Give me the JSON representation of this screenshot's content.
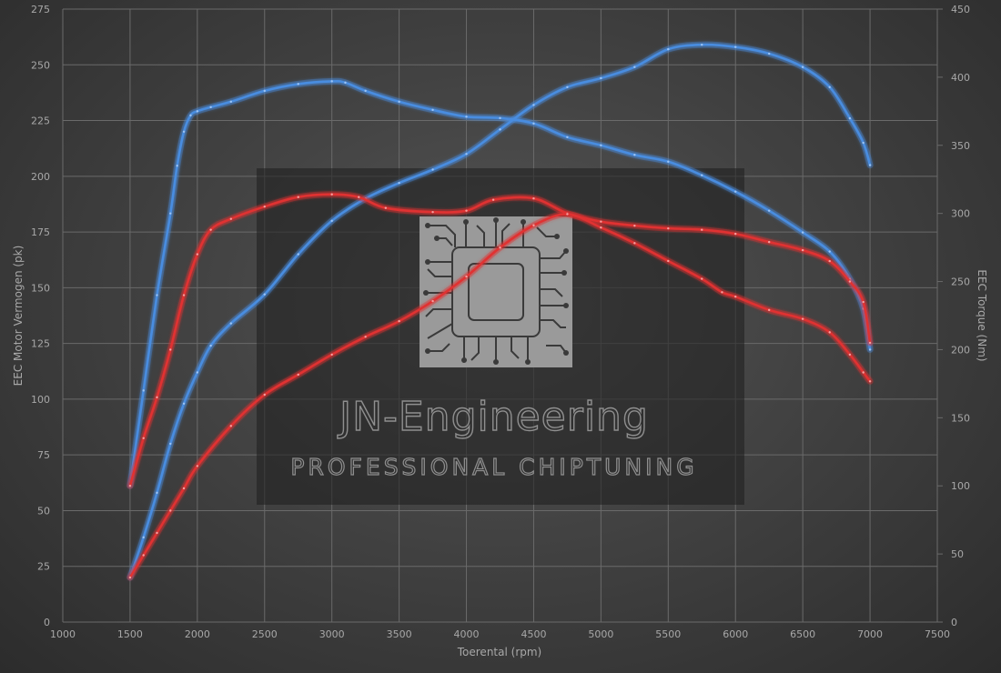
{
  "chart_data": {
    "type": "line",
    "title": "",
    "xlabel": "Toerental (rpm)",
    "ylabel_left": "EEC Motor Vermogen (pk)",
    "ylabel_right": "EEC Torque (Nm)",
    "xlim": [
      1000,
      7500
    ],
    "ylim_left": [
      0,
      275
    ],
    "ylim_right": [
      0,
      450
    ],
    "x_ticks": [
      1000,
      1500,
      2000,
      2500,
      3000,
      3500,
      4000,
      4500,
      5000,
      5500,
      6000,
      6500,
      7000,
      7500
    ],
    "y_left_ticks": [
      0,
      25,
      50,
      75,
      100,
      125,
      150,
      175,
      200,
      225,
      250,
      275
    ],
    "y_right_ticks": [
      0,
      50,
      100,
      150,
      200,
      250,
      300,
      350,
      400,
      450
    ],
    "grid": true,
    "series": [
      {
        "axis": "right",
        "color": "#4a8de0",
        "x": [
          1500,
          1600,
          1700,
          1800,
          1850,
          1900,
          1950,
          2000,
          2100,
          2250,
          2500,
          2750,
          3000,
          3100,
          3250,
          3500,
          3750,
          4000,
          4250,
          4500,
          4750,
          5000,
          5250,
          5500,
          5750,
          6000,
          6250,
          6500,
          6700,
          6850,
          6950,
          7000
        ],
        "values": [
          100,
          170,
          240,
          300,
          335,
          360,
          372,
          375,
          378,
          382,
          390,
          395,
          397,
          396,
          390,
          382,
          376,
          371,
          370,
          366,
          356,
          350,
          343,
          338,
          328,
          316,
          302,
          286,
          272,
          252,
          230,
          200
        ]
      },
      {
        "axis": "left",
        "color": "#4a8de0",
        "x": [
          1500,
          1600,
          1700,
          1800,
          1900,
          2000,
          2100,
          2250,
          2500,
          2750,
          3000,
          3250,
          3500,
          3750,
          4000,
          4250,
          4500,
          4750,
          5000,
          5250,
          5500,
          5750,
          6000,
          6250,
          6500,
          6700,
          6850,
          6950,
          7000
        ],
        "values": [
          20,
          38,
          58,
          80,
          98,
          112,
          124,
          134,
          147,
          165,
          180,
          190,
          197,
          203,
          210,
          221,
          232,
          240,
          244,
          249,
          257,
          259,
          258,
          255,
          249,
          240,
          226,
          215,
          205
        ]
      },
      {
        "axis": "right",
        "color": "#e03030",
        "x": [
          1500,
          1600,
          1700,
          1800,
          1900,
          2000,
          2100,
          2250,
          2500,
          2750,
          3000,
          3200,
          3400,
          3750,
          4000,
          4200,
          4500,
          4750,
          5000,
          5250,
          5500,
          5750,
          6000,
          6250,
          6500,
          6700,
          6850,
          6950,
          7000
        ],
        "values": [
          100,
          135,
          165,
          200,
          240,
          270,
          288,
          296,
          305,
          312,
          314,
          312,
          304,
          301,
          302,
          310,
          311,
          300,
          294,
          291,
          289,
          288,
          285,
          279,
          273,
          265,
          250,
          235,
          205
        ]
      },
      {
        "axis": "left",
        "color": "#e03030",
        "x": [
          1500,
          1600,
          1700,
          1800,
          1900,
          2000,
          2250,
          2500,
          2750,
          3000,
          3250,
          3500,
          3750,
          4000,
          4250,
          4500,
          4750,
          5000,
          5250,
          5500,
          5750,
          5900,
          6000,
          6250,
          6500,
          6700,
          6850,
          6950,
          7000
        ],
        "values": [
          20,
          30,
          40,
          50,
          60,
          70,
          88,
          102,
          111,
          120,
          128,
          135,
          144,
          155,
          168,
          178,
          183,
          177,
          170,
          162,
          154,
          148,
          146,
          140,
          136,
          130,
          120,
          112,
          108
        ]
      }
    ]
  },
  "watermark": {
    "title": "JN-Engineering",
    "subtitle": "Professional chiptuning"
  }
}
